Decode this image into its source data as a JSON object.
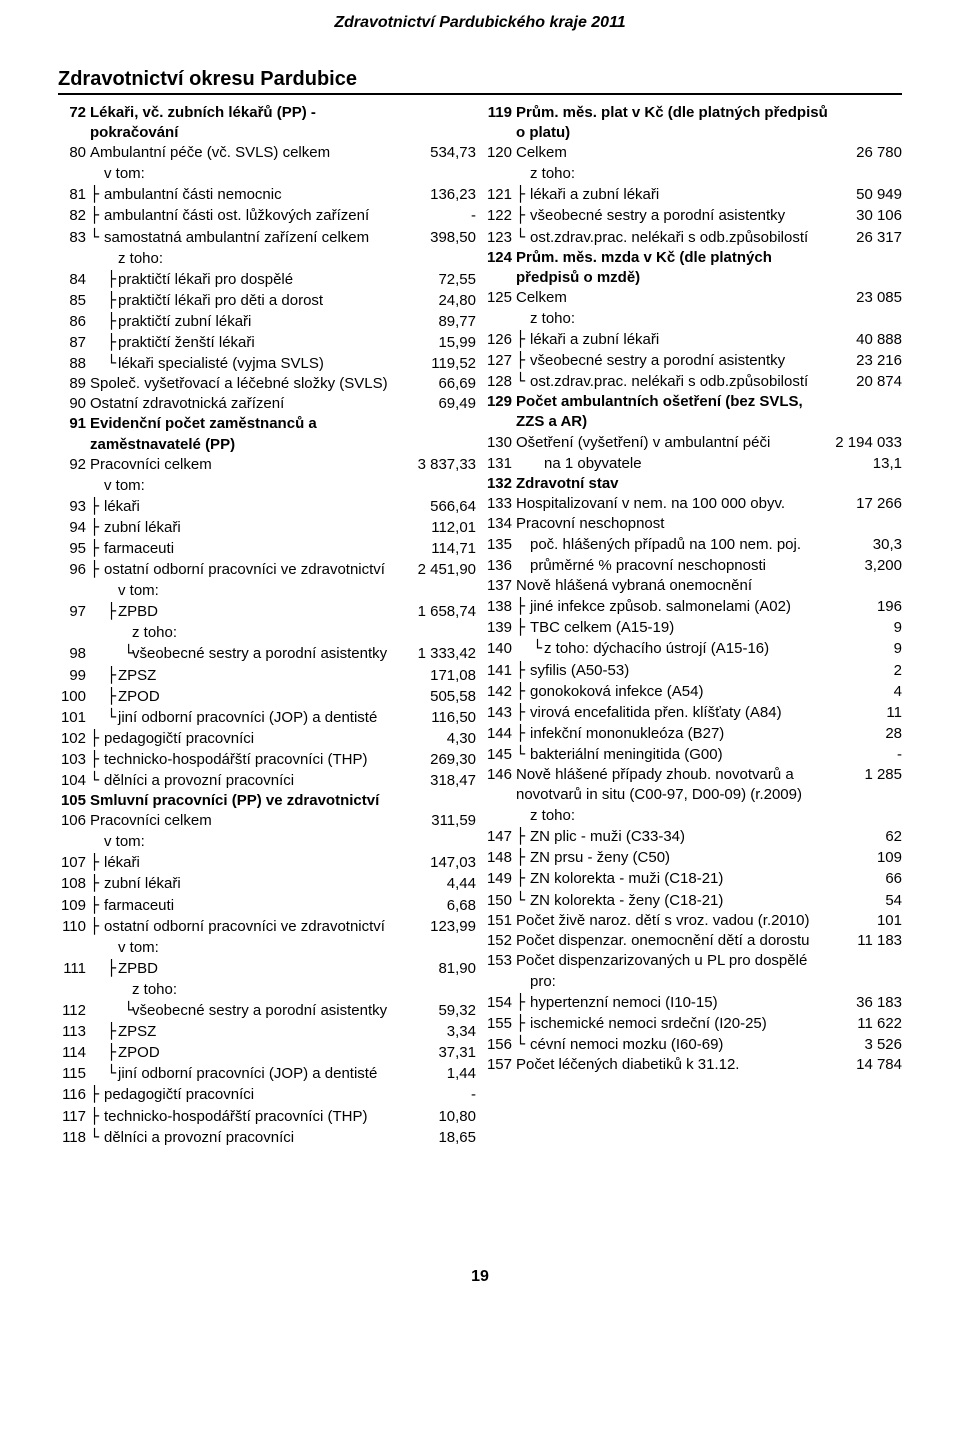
{
  "doc_header": "Zdravotnictví Pardubického kraje 2011",
  "section_title": "Zdravotnictví okresu Pardubice",
  "page_number": "19",
  "left": [
    {
      "n": "72",
      "label": "Lékaři, vč. zubních lékařů (PP) - pokračování",
      "val": "",
      "bold": true,
      "indent": 0
    },
    {
      "n": "80",
      "label": "Ambulantní péče (vč. SVLS) celkem",
      "val": "534,73",
      "indent": 0
    },
    {
      "n": "",
      "label": "v tom:",
      "val": "",
      "indent": 1,
      "sub": true
    },
    {
      "n": "81",
      "label": "ambulantní části nemocnic",
      "val": "136,23",
      "indent": 1,
      "tree": "├"
    },
    {
      "n": "82",
      "label": "ambulantní části ost. lůžkových zařízení",
      "val": "-",
      "indent": 1,
      "tree": "├"
    },
    {
      "n": "83",
      "label": "samostatná ambulantní zařízení celkem",
      "val": "398,50",
      "indent": 1,
      "tree": "└"
    },
    {
      "n": "",
      "label": "z toho:",
      "val": "",
      "indent": 2,
      "sub": true
    },
    {
      "n": "84",
      "label": "praktičtí lékaři pro dospělé",
      "val": "72,55",
      "indent": 2,
      "tree": "├"
    },
    {
      "n": "85",
      "label": "praktičtí lékaři pro děti a dorost",
      "val": "24,80",
      "indent": 2,
      "tree": "├"
    },
    {
      "n": "86",
      "label": "praktičtí zubní lékaři",
      "val": "89,77",
      "indent": 2,
      "tree": "├"
    },
    {
      "n": "87",
      "label": "praktičtí ženští lékaři",
      "val": "15,99",
      "indent": 2,
      "tree": "├"
    },
    {
      "n": "88",
      "label": "lékaři specialisté (vyjma SVLS)",
      "val": "119,52",
      "indent": 2,
      "tree": "└"
    },
    {
      "n": "89",
      "label": "Společ. vyšetřovací a léčebné složky (SVLS)",
      "val": "66,69",
      "indent": 0
    },
    {
      "n": "90",
      "label": "Ostatní zdravotnická zařízení",
      "val": "69,49",
      "indent": 0
    },
    {
      "n": "91",
      "label": "Evidenční počet zaměstnanců a zaměstnavatelé (PP)",
      "val": "",
      "bold": true,
      "indent": 0
    },
    {
      "n": "92",
      "label": "Pracovníci celkem",
      "val": "3 837,33",
      "indent": 0
    },
    {
      "n": "",
      "label": "v tom:",
      "val": "",
      "indent": 1,
      "sub": true
    },
    {
      "n": "93",
      "label": "lékaři",
      "val": "566,64",
      "indent": 1,
      "tree": "├"
    },
    {
      "n": "94",
      "label": "zubní lékaři",
      "val": "112,01",
      "indent": 1,
      "tree": "├"
    },
    {
      "n": "95",
      "label": "farmaceuti",
      "val": "114,71",
      "indent": 1,
      "tree": "├"
    },
    {
      "n": "96",
      "label": "ostatní odborní pracovníci ve zdravotnictví",
      "val": "2 451,90",
      "indent": 1,
      "tree": "├"
    },
    {
      "n": "",
      "label": "v tom:",
      "val": "",
      "indent": 2,
      "sub": true
    },
    {
      "n": "97",
      "label": "ZPBD",
      "val": "1 658,74",
      "indent": 2,
      "tree": "├"
    },
    {
      "n": "",
      "label": "z toho:",
      "val": "",
      "indent": 3,
      "sub": true
    },
    {
      "n": "98",
      "label": "všeobecné sestry a porodní asistentky",
      "val": "1 333,42",
      "indent": 3,
      "tree": "└"
    },
    {
      "n": "99",
      "label": "ZPSZ",
      "val": "171,08",
      "indent": 2,
      "tree": "├"
    },
    {
      "n": "100",
      "label": "ZPOD",
      "val": "505,58",
      "indent": 2,
      "tree": "├"
    },
    {
      "n": "101",
      "label": "jiní odborní pracovníci (JOP) a dentisté",
      "val": "116,50",
      "indent": 2,
      "tree": "└"
    },
    {
      "n": "102",
      "label": "pedagogičtí pracovníci",
      "val": "4,30",
      "indent": 1,
      "tree": "├"
    },
    {
      "n": "103",
      "label": "technicko-hospodářští pracovníci (THP)",
      "val": "269,30",
      "indent": 1,
      "tree": "├"
    },
    {
      "n": "104",
      "label": "dělníci a provozní pracovníci",
      "val": "318,47",
      "indent": 1,
      "tree": "└"
    },
    {
      "n": "105",
      "label": "Smluvní pracovníci (PP) ve zdravotnictví",
      "val": "",
      "bold": true,
      "indent": 0
    },
    {
      "n": "106",
      "label": "Pracovníci celkem",
      "val": "311,59",
      "indent": 0
    },
    {
      "n": "",
      "label": "v tom:",
      "val": "",
      "indent": 1,
      "sub": true
    },
    {
      "n": "107",
      "label": "lékaři",
      "val": "147,03",
      "indent": 1,
      "tree": "├"
    },
    {
      "n": "108",
      "label": "zubní lékaři",
      "val": "4,44",
      "indent": 1,
      "tree": "├"
    },
    {
      "n": "109",
      "label": "farmaceuti",
      "val": "6,68",
      "indent": 1,
      "tree": "├"
    },
    {
      "n": "110",
      "label": "ostatní odborní pracovníci ve zdravotnictví",
      "val": "123,99",
      "indent": 1,
      "tree": "├"
    },
    {
      "n": "",
      "label": "v tom:",
      "val": "",
      "indent": 2,
      "sub": true
    },
    {
      "n": "111",
      "label": "ZPBD",
      "val": "81,90",
      "indent": 2,
      "tree": "├"
    },
    {
      "n": "",
      "label": "z toho:",
      "val": "",
      "indent": 3,
      "sub": true
    },
    {
      "n": "112",
      "label": "všeobecné sestry a porodní asistentky",
      "val": "59,32",
      "indent": 3,
      "tree": "└"
    },
    {
      "n": "113",
      "label": "ZPSZ",
      "val": "3,34",
      "indent": 2,
      "tree": "├"
    },
    {
      "n": "114",
      "label": "ZPOD",
      "val": "37,31",
      "indent": 2,
      "tree": "├"
    },
    {
      "n": "115",
      "label": "jiní odborní pracovníci (JOP) a dentisté",
      "val": "1,44",
      "indent": 2,
      "tree": "└"
    },
    {
      "n": "116",
      "label": "pedagogičtí pracovníci",
      "val": "-",
      "indent": 1,
      "tree": "├"
    },
    {
      "n": "117",
      "label": "technicko-hospodářští pracovníci (THP)",
      "val": "10,80",
      "indent": 1,
      "tree": "├"
    },
    {
      "n": "118",
      "label": "dělníci a provozní pracovníci",
      "val": "18,65",
      "indent": 1,
      "tree": "└"
    }
  ],
  "right": [
    {
      "n": "119",
      "label": "Prům. měs. plat v Kč (dle platných předpisů o platu)",
      "val": "",
      "bold": true,
      "indent": 0
    },
    {
      "n": "120",
      "label": "Celkem",
      "val": "26 780",
      "indent": 0
    },
    {
      "n": "",
      "label": "z toho:",
      "val": "",
      "indent": 1,
      "sub": true
    },
    {
      "n": "121",
      "label": "lékaři a zubní lékaři",
      "val": "50 949",
      "indent": 1,
      "tree": "├"
    },
    {
      "n": "122",
      "label": "všeobecné sestry a porodní asistentky",
      "val": "30 106",
      "indent": 1,
      "tree": "├"
    },
    {
      "n": "123",
      "label": "ost.zdrav.prac. nelékaři s odb.způsobilostí",
      "val": "26 317",
      "indent": 1,
      "tree": "└"
    },
    {
      "n": "124",
      "label": "Prům. měs. mzda v Kč (dle platných předpisů o mzdě)",
      "val": "",
      "bold": true,
      "indent": 0
    },
    {
      "n": "125",
      "label": "Celkem",
      "val": "23 085",
      "indent": 0
    },
    {
      "n": "",
      "label": "z toho:",
      "val": "",
      "indent": 1,
      "sub": true
    },
    {
      "n": "126",
      "label": "lékaři a zubní lékaři",
      "val": "40 888",
      "indent": 1,
      "tree": "├"
    },
    {
      "n": "127",
      "label": "všeobecné sestry a porodní asistentky",
      "val": "23 216",
      "indent": 1,
      "tree": "├"
    },
    {
      "n": "128",
      "label": "ost.zdrav.prac. nelékaři s odb.způsobilostí",
      "val": "20 874",
      "indent": 1,
      "tree": "└"
    },
    {
      "n": "129",
      "label": "Počet ambulantních ošetření (bez SVLS, ZZS a AR)",
      "val": "",
      "bold": true,
      "indent": 0
    },
    {
      "n": "130",
      "label": "Ošetření (vyšetření) v ambulantní péči",
      "val": "2 194 033",
      "indent": 0
    },
    {
      "n": "131",
      "label": "na 1 obyvatele",
      "val": "13,1",
      "indent": 2
    },
    {
      "n": "132",
      "label": "Zdravotní stav",
      "val": "",
      "bold": true,
      "indent": 0
    },
    {
      "n": "133",
      "label": "Hospitalizovaní v nem. na 100 000 obyv.",
      "val": "17 266",
      "indent": 0
    },
    {
      "n": "134",
      "label": "Pracovní neschopnost",
      "val": "",
      "indent": 0
    },
    {
      "n": "135",
      "label": "poč. hlášených případů na 100 nem. poj.",
      "val": "30,3",
      "indent": 1
    },
    {
      "n": "136",
      "label": "průměrné % pracovní neschopnosti",
      "val": "3,200",
      "indent": 1
    },
    {
      "n": "137",
      "label": "Nově hlášená vybraná onemocnění",
      "val": "",
      "indent": 0
    },
    {
      "n": "138",
      "label": "jiné infekce způsob. salmonelami (A02)",
      "val": "196",
      "indent": 1,
      "tree": "├"
    },
    {
      "n": "139",
      "label": "TBC celkem (A15-19)",
      "val": "9",
      "indent": 1,
      "tree": "├"
    },
    {
      "n": "140",
      "label": "z toho: dýchacího ústrojí (A15-16)",
      "val": "9",
      "indent": 2,
      "tree": "└"
    },
    {
      "n": "141",
      "label": "syfilis (A50-53)",
      "val": "2",
      "indent": 1,
      "tree": "├"
    },
    {
      "n": "142",
      "label": "gonokoková infekce (A54)",
      "val": "4",
      "indent": 1,
      "tree": "├"
    },
    {
      "n": "143",
      "label": "virová encefalitida přen. klíšťaty (A84)",
      "val": "11",
      "indent": 1,
      "tree": "├"
    },
    {
      "n": "144",
      "label": "infekční mononukleóza (B27)",
      "val": "28",
      "indent": 1,
      "tree": "├"
    },
    {
      "n": "145",
      "label": "bakteriální meningitida (G00)",
      "val": "-",
      "indent": 1,
      "tree": "└"
    },
    {
      "n": "146",
      "label": "Nově hlášené případy zhoub. novotvarů a novotvarů in situ (C00-97, D00-09) (r.2009)",
      "val": "1 285",
      "indent": 0
    },
    {
      "n": "",
      "label": "z toho:",
      "val": "",
      "indent": 1,
      "sub": true
    },
    {
      "n": "147",
      "label": "ZN plic - muži (C33-34)",
      "val": "62",
      "indent": 1,
      "tree": "├"
    },
    {
      "n": "148",
      "label": "ZN prsu - ženy (C50)",
      "val": "109",
      "indent": 1,
      "tree": "├"
    },
    {
      "n": "149",
      "label": "ZN kolorekta - muži (C18-21)",
      "val": "66",
      "indent": 1,
      "tree": "├"
    },
    {
      "n": "150",
      "label": "ZN kolorekta - ženy (C18-21)",
      "val": "54",
      "indent": 1,
      "tree": "└"
    },
    {
      "n": "151",
      "label": "Počet živě naroz. dětí s vroz. vadou (r.2010)",
      "val": "101",
      "indent": 0
    },
    {
      "n": "152",
      "label": "Počet dispenzar. onemocnění dětí a dorostu",
      "val": "11 183",
      "indent": 0
    },
    {
      "n": "153",
      "label": "Počet dispenzarizovaných u PL pro dospělé",
      "val": "",
      "indent": 0
    },
    {
      "n": "",
      "label": "pro:",
      "val": "",
      "indent": 1,
      "sub": true
    },
    {
      "n": "154",
      "label": "hypertenzní nemoci (I10-15)",
      "val": "36 183",
      "indent": 1,
      "tree": "├"
    },
    {
      "n": "155",
      "label": "ischemické nemoci srdeční (I20-25)",
      "val": "11 622",
      "indent": 1,
      "tree": "├"
    },
    {
      "n": "156",
      "label": "cévní nemoci mozku (I60-69)",
      "val": "3 526",
      "indent": 1,
      "tree": "└"
    },
    {
      "n": "157",
      "label": "Počet léčených diabetiků k 31.12.",
      "val": "14 784",
      "indent": 0
    }
  ]
}
